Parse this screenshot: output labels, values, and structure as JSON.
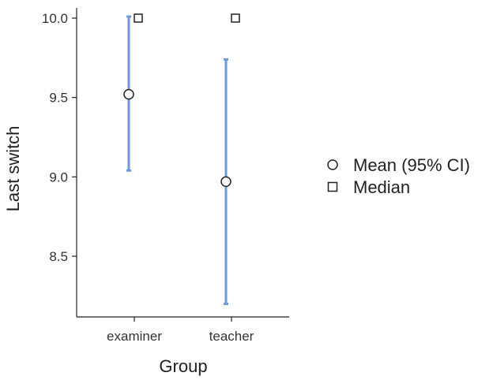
{
  "chart_data": {
    "type": "scatter",
    "xlabel": "Group",
    "ylabel": "Last switch",
    "categories": [
      "examiner",
      "teacher"
    ],
    "ylim": [
      8.07,
      10.1
    ],
    "yticks": [
      "8.5",
      "9.0",
      "9.5",
      "10.0"
    ],
    "series": [
      {
        "name": "Mean (95% CI)",
        "marker": "circle",
        "values": [
          9.52,
          8.97
        ],
        "ci_lower": [
          9.04,
          8.2
        ],
        "ci_upper": [
          10.01,
          9.74
        ]
      },
      {
        "name": "Median",
        "marker": "square",
        "values": [
          10.0,
          10.0
        ]
      }
    ],
    "legend": [
      "Mean (95% CI)",
      "Median"
    ],
    "legend_position": "right",
    "grid": false,
    "colors": {
      "errorbar": "#6e9ad8",
      "marker_stroke": "#222222",
      "marker_fill": "#ffffff",
      "axis": "#222222"
    }
  }
}
